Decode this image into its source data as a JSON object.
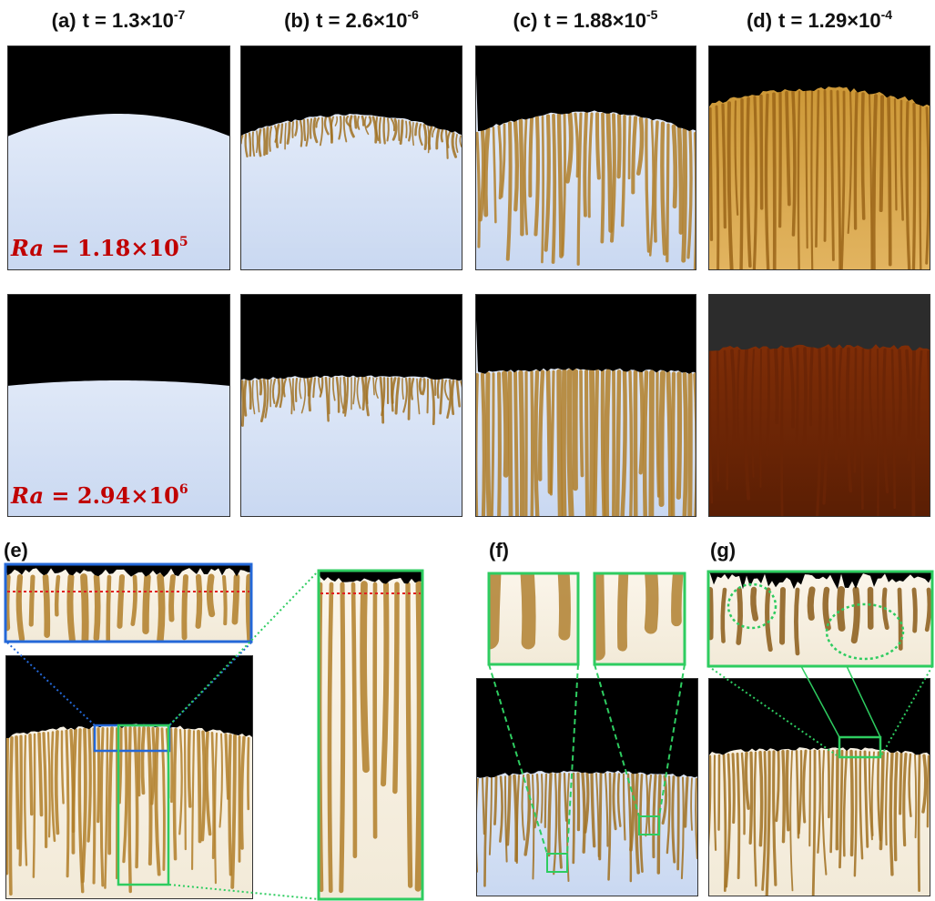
{
  "panels": [
    {
      "label": "(a)",
      "time": "t = 1.3×10",
      "exponent": "-7"
    },
    {
      "label": "(b)",
      "time": "t = 2.6×10",
      "exponent": "-6"
    },
    {
      "label": "(c)",
      "time": "t = 1.88×10",
      "exponent": "-5"
    },
    {
      "label": "(d)",
      "time": "t = 1.29×10",
      "exponent": "-4"
    }
  ],
  "rayleigh": [
    {
      "symbol": "Ra",
      "text": " = 1.18×10",
      "exponent": "5"
    },
    {
      "symbol": "Ra",
      "text": " = 2.94×10",
      "exponent": "6"
    }
  ],
  "sections": [
    "(e)",
    "(f)",
    "(g)"
  ]
}
